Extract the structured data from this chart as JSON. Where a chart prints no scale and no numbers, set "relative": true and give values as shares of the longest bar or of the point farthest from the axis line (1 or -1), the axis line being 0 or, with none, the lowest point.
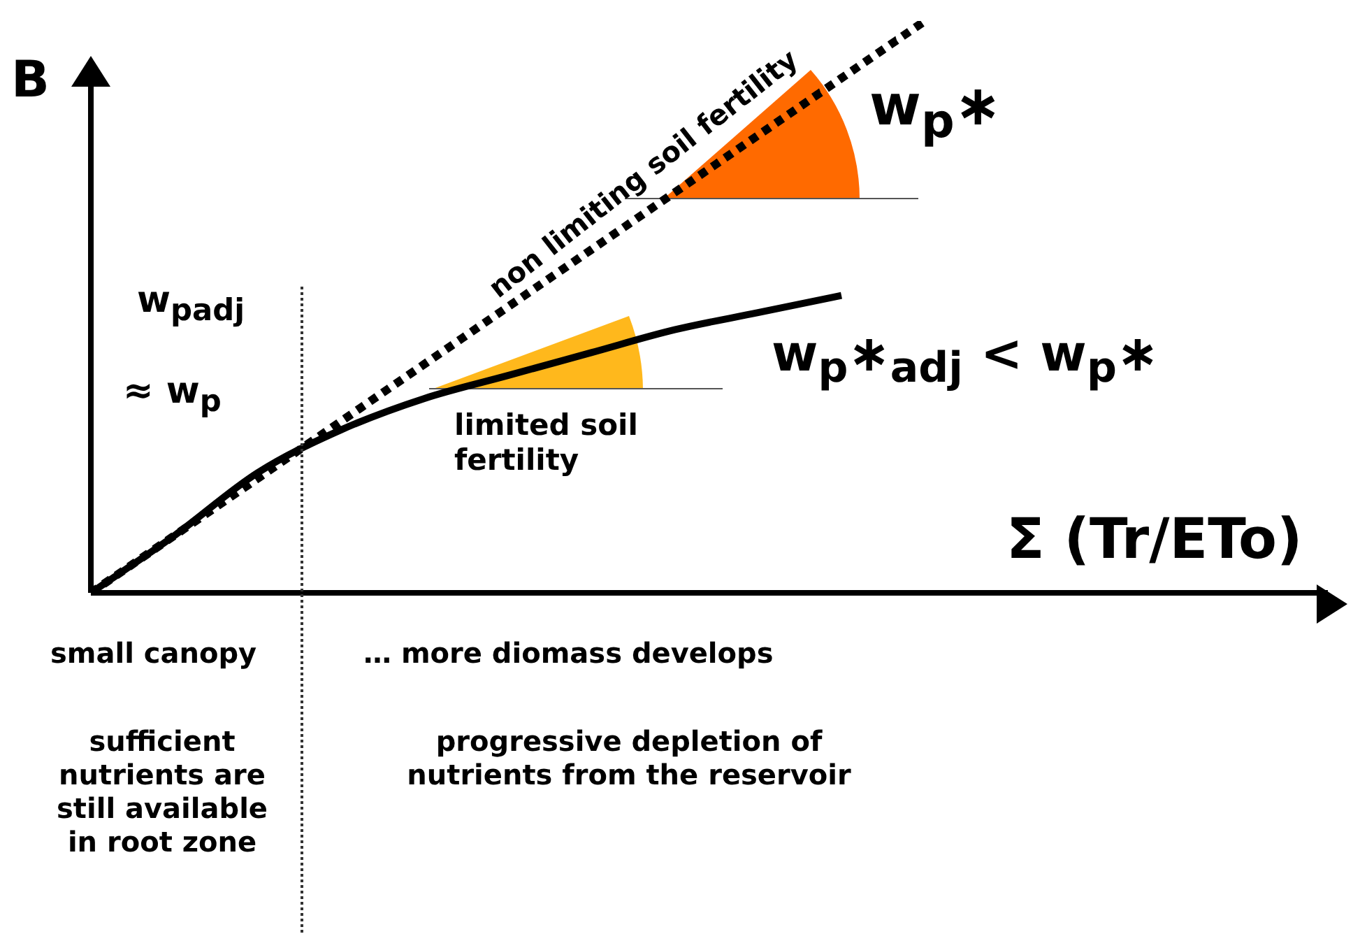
{
  "chart_data": {
    "type": "line",
    "relative": true,
    "xlabel": "Σ (Tr/ETo)",
    "ylabel": "B",
    "categories": [
      null,
      null,
      null,
      null,
      null,
      null,
      null,
      null,
      null,
      null,
      null,
      null,
      null,
      null,
      null,
      null
    ],
    "series": [
      {
        "color": "#000000",
        "line_style": "dotted",
        "values": [
          0,
          0.1,
          0.2,
          0.3,
          0.4,
          0.5,
          0.6,
          0.7,
          0.8,
          0.9,
          1.0,
          null,
          null,
          null,
          null,
          null
        ]
      },
      {
        "color": "#000000",
        "line_style": "solid",
        "values": [
          0,
          0.1,
          0.21,
          0.285,
          0.34,
          0.38,
          0.42,
          0.46,
          0.49,
          0.52,
          null,
          null,
          null,
          null,
          null,
          null
        ]
      }
    ],
    "annotations": [
      "non limiting soil fertility",
      "w$_{p}$∗",
      "w$_{p}$∗$_{adj}$ < w$_{p}$∗",
      "w$_{padj}$",
      "≈ w$_{p}$",
      "limited soil fertility",
      "small canopy",
      "…   more diomass develops",
      "sufficient nutrients are still available in root zone",
      "progressive depletion of nutrients from the reservoir"
    ],
    "grid": false,
    "legend": false,
    "marker": "none"
  }
}
